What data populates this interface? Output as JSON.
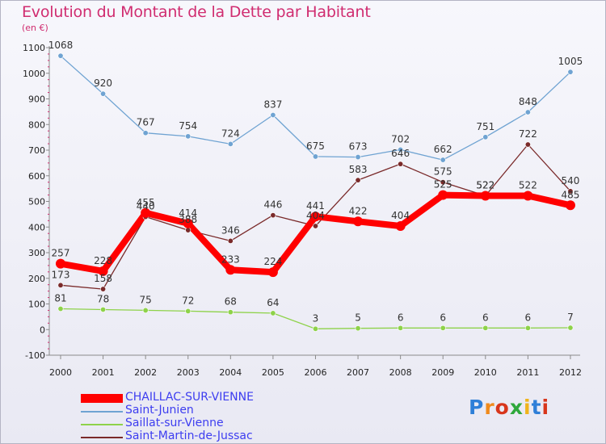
{
  "title": "Evolution du Montant de la Dette par Habitant",
  "unit": "(en €)",
  "logo": {
    "text": "Proxiti",
    "colors": [
      "#2f7fd8",
      "#f08a1c",
      "#d8361c",
      "#2fa83c",
      "#f0b41c",
      "#2f7fd8",
      "#d8361c"
    ]
  },
  "colors": {
    "title": "#d02c70",
    "legend_text": "#3d3df0",
    "axis": "#8a8a8a",
    "grid_tick": "#d02c70"
  },
  "legend": [
    {
      "label": "CHAILLAC-SUR-VIENNE",
      "series": 0
    },
    {
      "label": "Saint-Junien",
      "series": 1
    },
    {
      "label": "Saillat-sur-Vienne",
      "series": 2
    },
    {
      "label": "Saint-Martin-de-Jussac",
      "series": 3
    }
  ],
  "chart_data": {
    "type": "line",
    "x": [
      "2000",
      "2001",
      "2002",
      "2003",
      "2004",
      "2005",
      "2006",
      "2007",
      "2008",
      "2009",
      "2010",
      "2011",
      "2012"
    ],
    "ylim": [
      -100,
      1100
    ],
    "yticks": [
      "-100",
      "0",
      "100",
      "200",
      "300",
      "400",
      "500",
      "600",
      "700",
      "800",
      "900",
      "1000",
      "1100"
    ],
    "series": [
      {
        "name": "CHAILLAC-SUR-VIENNE",
        "color": "#ff0000",
        "emphasis": "thick",
        "values": [
          257,
          228,
          455,
          414,
          233,
          224,
          441,
          422,
          404,
          525,
          522,
          522,
          485
        ],
        "labels": [
          "257",
          "228",
          "455",
          "414",
          "233",
          "224",
          "441",
          "422",
          "404",
          "525",
          "522",
          "522",
          "485"
        ]
      },
      {
        "name": "Saint-Junien",
        "color": "#6fa3d2",
        "values": [
          1068,
          920,
          767,
          754,
          724,
          837,
          675,
          673,
          702,
          662,
          751,
          848,
          1005
        ],
        "labels": [
          "1068",
          "920",
          "767",
          "754",
          "724",
          "837",
          "675",
          "673",
          "702",
          "662",
          "751",
          "848",
          "1005"
        ]
      },
      {
        "name": "Saillat-sur-Vienne",
        "color": "#8ed24a",
        "values": [
          81,
          78,
          75,
          72,
          68,
          64,
          3,
          5,
          6,
          6,
          6,
          6,
          7
        ],
        "labels": [
          "81",
          "78",
          "75",
          "72",
          "68",
          "64",
          "3",
          "5",
          "6",
          "6",
          "6",
          "6",
          "7"
        ]
      },
      {
        "name": "Saint-Martin-de-Jussac",
        "color": "#7a2a2a",
        "values": [
          173,
          158,
          440,
          388,
          346,
          446,
          404,
          583,
          646,
          575,
          522,
          722,
          540
        ],
        "labels": [
          "173",
          "158",
          "440",
          "388",
          "346",
          "446",
          "404",
          "583",
          "646",
          "575",
          "522",
          "722",
          "540"
        ]
      }
    ]
  }
}
